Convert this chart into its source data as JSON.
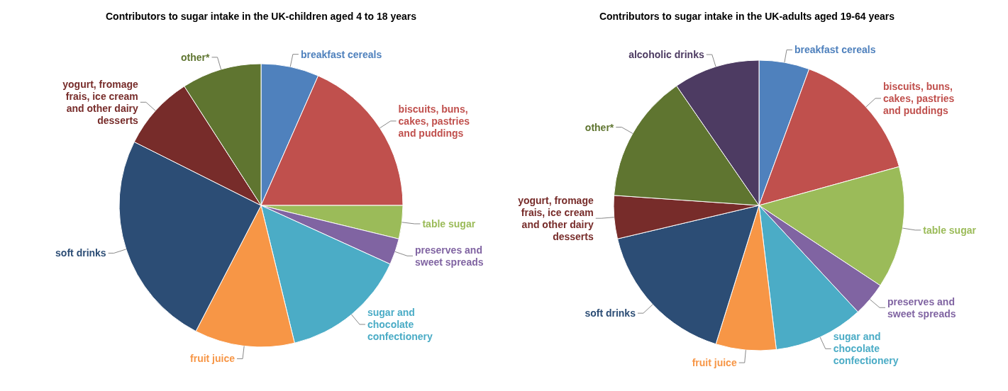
{
  "chart_data": [
    {
      "type": "pie",
      "title": "Contributors to sugar intake in the UK-children aged 4 to 18 years",
      "categories": [
        "breakfast cereals",
        "biscuits, buns, cakes, pastries and puddings",
        "table sugar",
        "preserves and sweet spreads",
        "sugar and chocolate confectionery",
        "fruit juice",
        "soft drinks",
        "yogurt, fromage frais, ice cream and other dairy desserts",
        "other*"
      ],
      "values": [
        6.6,
        18.4,
        3.8,
        3,
        14.4,
        11.4,
        24.8,
        8.5,
        9.1
      ],
      "colors": [
        "#4f81bd",
        "#c0504d",
        "#9bbb59",
        "#8064a2",
        "#4bacc6",
        "#f79646",
        "#2c4d75",
        "#772c2a",
        "#5f7530"
      ]
    },
    {
      "type": "pie",
      "title": "Contributors to sugar intake in the UK-adults aged 19-64 years",
      "categories": [
        "breakfast cereals",
        "biscuits, buns, cakes, pastries and puddings",
        "table sugar",
        "preserves and sweet spreads",
        "sugar and chocolate confectionery",
        "fruit juice",
        "soft drinks",
        "yogurt, fromage frais, ice cream and other dairy desserts",
        "other*",
        "alcoholic drinks"
      ],
      "values": [
        5.6,
        15.1,
        13.6,
        3.8,
        10,
        6.7,
        16.5,
        4.8,
        14.3,
        9.6
      ],
      "colors": [
        "#4f81bd",
        "#c0504d",
        "#9bbb59",
        "#8064a2",
        "#4bacc6",
        "#f79646",
        "#2c4d75",
        "#772c2a",
        "#5f7530",
        "#4d3b62"
      ]
    }
  ]
}
